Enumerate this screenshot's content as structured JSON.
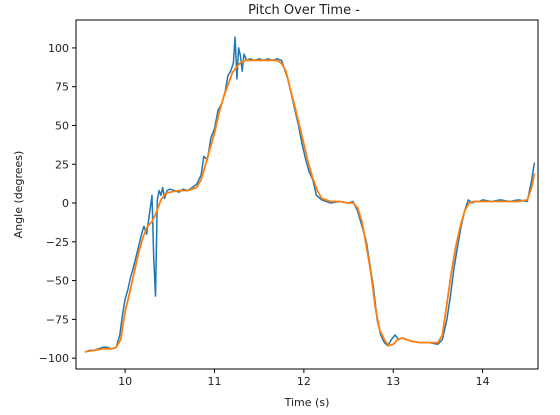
{
  "chart_data": {
    "type": "line",
    "title": "Pitch Over Time -",
    "xlabel": "Time (s)",
    "ylabel": "Angle (degrees)",
    "xlim": [
      9.45,
      14.62
    ],
    "ylim": [
      -107,
      118
    ],
    "xticks": [
      10,
      11,
      12,
      13,
      14
    ],
    "yticks": [
      -100,
      -75,
      -50,
      -25,
      0,
      25,
      50,
      75,
      100
    ],
    "grid": false,
    "series": [
      {
        "color": "#1f77b4",
        "x": [
          9.55,
          9.6,
          9.65,
          9.7,
          9.75,
          9.8,
          9.85,
          9.9,
          9.94,
          9.97,
          10.0,
          10.03,
          10.06,
          10.09,
          10.12,
          10.15,
          10.18,
          10.21,
          10.24,
          10.27,
          10.3,
          10.32,
          10.34,
          10.36,
          10.38,
          10.4,
          10.42,
          10.44,
          10.47,
          10.5,
          10.55,
          10.6,
          10.65,
          10.7,
          10.75,
          10.8,
          10.85,
          10.88,
          10.92,
          10.96,
          11.0,
          11.04,
          11.08,
          11.12,
          11.15,
          11.18,
          11.21,
          11.23,
          11.25,
          11.27,
          11.29,
          11.31,
          11.33,
          11.36,
          11.4,
          11.45,
          11.5,
          11.55,
          11.6,
          11.65,
          11.7,
          11.75,
          11.78,
          11.82,
          11.86,
          11.9,
          11.94,
          11.98,
          12.02,
          12.06,
          12.1,
          12.14,
          12.2,
          12.3,
          12.4,
          12.5,
          12.55,
          12.6,
          12.65,
          12.7,
          12.74,
          12.78,
          12.82,
          12.86,
          12.9,
          12.94,
          12.98,
          13.02,
          13.06,
          13.1,
          13.2,
          13.3,
          13.4,
          13.5,
          13.55,
          13.6,
          13.64,
          13.68,
          13.72,
          13.76,
          13.8,
          13.84,
          13.88,
          13.92,
          13.96,
          14.0,
          14.1,
          14.2,
          14.3,
          14.4,
          14.5,
          14.55,
          14.58
        ],
        "values": [
          -96,
          -95,
          -95,
          -94,
          -93,
          -93,
          -94,
          -93,
          -85,
          -72,
          -62,
          -56,
          -48,
          -42,
          -35,
          -28,
          -21,
          -15,
          -20,
          -8,
          5,
          -35,
          -60,
          2,
          8,
          5,
          10,
          3,
          8,
          9,
          8,
          7,
          9,
          8,
          10,
          12,
          18,
          30,
          28,
          42,
          48,
          60,
          64,
          72,
          82,
          85,
          90,
          107,
          80,
          100,
          95,
          85,
          96,
          92,
          93,
          92,
          93,
          92,
          93,
          92,
          93,
          92,
          87,
          80,
          70,
          60,
          50,
          38,
          28,
          20,
          15,
          5,
          2,
          0,
          1,
          0,
          1,
          -5,
          -15,
          -25,
          -40,
          -55,
          -75,
          -85,
          -90,
          -92,
          -88,
          -85,
          -88,
          -87,
          -89,
          -90,
          -90,
          -91,
          -88,
          -75,
          -60,
          -42,
          -28,
          -15,
          -5,
          2,
          0,
          1,
          1,
          2,
          1,
          2,
          1,
          2,
          1,
          15,
          26
        ]
      },
      {
        "color": "#ff7f0e",
        "x": [
          9.55,
          9.65,
          9.75,
          9.85,
          9.9,
          9.95,
          10.0,
          10.05,
          10.1,
          10.15,
          10.2,
          10.25,
          10.3,
          10.35,
          10.4,
          10.45,
          10.5,
          10.6,
          10.7,
          10.8,
          10.85,
          10.9,
          10.95,
          11.0,
          11.05,
          11.1,
          11.15,
          11.2,
          11.25,
          11.3,
          11.35,
          11.4,
          11.5,
          11.6,
          11.7,
          11.75,
          11.8,
          11.85,
          11.9,
          11.95,
          12.0,
          12.05,
          12.1,
          12.15,
          12.2,
          12.3,
          12.4,
          12.5,
          12.55,
          12.6,
          12.65,
          12.7,
          12.75,
          12.8,
          12.85,
          12.9,
          12.95,
          13.0,
          13.05,
          13.1,
          13.2,
          13.3,
          13.4,
          13.5,
          13.55,
          13.6,
          13.65,
          13.7,
          13.75,
          13.8,
          13.85,
          13.9,
          14.0,
          14.1,
          14.2,
          14.3,
          14.4,
          14.5,
          14.55,
          14.58
        ],
        "values": [
          -96,
          -95,
          -94,
          -94,
          -93,
          -88,
          -70,
          -58,
          -45,
          -32,
          -22,
          -15,
          -12,
          -6,
          2,
          6,
          7,
          8,
          8,
          10,
          15,
          25,
          35,
          45,
          58,
          68,
          76,
          84,
          88,
          91,
          92,
          92,
          92,
          92,
          92,
          90,
          85,
          73,
          62,
          50,
          38,
          26,
          16,
          8,
          3,
          1,
          1,
          0,
          0,
          -3,
          -12,
          -28,
          -45,
          -68,
          -82,
          -88,
          -92,
          -91,
          -88,
          -87,
          -89,
          -90,
          -90,
          -90,
          -85,
          -65,
          -45,
          -28,
          -15,
          -5,
          0,
          1,
          1,
          1,
          1,
          1,
          1,
          2,
          10,
          19
        ]
      }
    ]
  }
}
